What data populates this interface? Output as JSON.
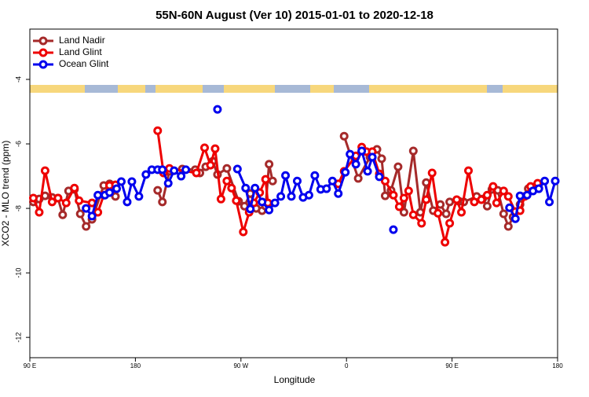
{
  "chart_data": {
    "type": "line",
    "title": "55N-60N August (Ver 10)   2015-01-01 to 2020-12-18",
    "xlabel": "Longitude",
    "ylabel": "XCO2 - MLO trend (ppm)",
    "xlim": [
      90,
      540
    ],
    "ylim": [
      -12.63,
      -2.44
    ],
    "xticks": [
      {
        "value": 90,
        "label": "90 E"
      },
      180,
      {
        "value": 270,
        "label": "90 W"
      },
      {
        "value": 360,
        "label": "0"
      },
      {
        "value": 450,
        "label": "90 E"
      },
      {
        "value": 540,
        "label": "180"
      }
    ],
    "yticks": [
      -4,
      -6,
      -8,
      -10,
      -12
    ],
    "legend": "upper left",
    "series": [
      {
        "name": "Land Nadir",
        "color": "#a52a2a",
        "x": [
          93,
          98,
          103,
          109,
          114,
          118,
          123,
          128,
          133,
          138,
          143,
          153,
          158,
          163,
          null,
          199,
          203,
          209,
          220,
          231,
          235,
          240,
          246,
          250,
          258,
          268,
          273,
          278,
          283,
          288,
          291,
          294,
          297,
          null,
          358,
          370,
          380,
          386,
          390,
          393,
          398,
          404,
          409,
          417,
          423,
          428,
          434,
          440,
          445,
          448,
          456,
          460,
          471,
          476,
          480,
          484,
          489,
          494,
          498,
          502,
          508,
          515,
          524
        ],
        "values": [
          -7.8,
          -7.71,
          -7.61,
          -7.66,
          -7.68,
          -8.2,
          -7.46,
          -7.41,
          -8.17,
          -8.56,
          -8.34,
          -7.29,
          -7.24,
          -7.63,
          null,
          -7.44,
          -7.8,
          -6.85,
          -6.78,
          -6.8,
          -6.9,
          -6.71,
          -6.54,
          -6.95,
          -6.76,
          -7.78,
          -7.93,
          -7.54,
          -8.0,
          -8.07,
          -7.93,
          -6.63,
          -7.15,
          null,
          -5.76,
          -7.07,
          -6.41,
          -6.17,
          -6.46,
          -7.61,
          -7.44,
          -6.71,
          -8.12,
          -6.22,
          -8.12,
          -7.2,
          -8.07,
          -7.88,
          -8.17,
          -7.8,
          -7.78,
          -7.8,
          -7.63,
          -7.71,
          -7.93,
          -7.41,
          -7.44,
          -8.17,
          -8.56,
          -8.27,
          -7.88,
          -7.39,
          -7.37
        ]
      },
      {
        "name": "Land Glint",
        "color": "#ee0000",
        "x": [
          93,
          98,
          103,
          109,
          114,
          121,
          128,
          132,
          143,
          148,
          153,
          158,
          163,
          null,
          199,
          204,
          209,
          232,
          239,
          244,
          248,
          253,
          258,
          262,
          266,
          272,
          277,
          281,
          286,
          291,
          293,
          null,
          353,
          358,
          368,
          373,
          377,
          382,
          388,
          393,
          400,
          405,
          409,
          413,
          417,
          424,
          428,
          433,
          438,
          444,
          448,
          454,
          458,
          464,
          469,
          475,
          480,
          485,
          488,
          494,
          498,
          504,
          508,
          512,
          517,
          523
        ],
        "values": [
          -7.68,
          -8.12,
          -6.83,
          -7.8,
          -7.68,
          -7.83,
          -7.37,
          -7.76,
          -7.83,
          -8.12,
          -7.59,
          -7.29,
          -7.27,
          null,
          -5.59,
          -6.9,
          -6.76,
          -6.9,
          -6.12,
          -6.66,
          -6.15,
          -7.71,
          -7.15,
          -7.37,
          -7.76,
          -8.73,
          -8.12,
          -7.83,
          -7.51,
          -7.1,
          -7.83,
          null,
          -7.24,
          -6.85,
          -6.37,
          -6.1,
          -6.24,
          -6.24,
          -6.93,
          -7.15,
          -7.59,
          -7.95,
          -7.68,
          -7.46,
          -8.2,
          -8.46,
          -7.73,
          -6.9,
          -8.15,
          -9.05,
          -8.46,
          -7.73,
          -8.12,
          -6.83,
          -7.8,
          -7.73,
          -7.59,
          -7.32,
          -7.83,
          -7.46,
          -7.63,
          -8.1,
          -8.07,
          -7.63,
          -7.32,
          -7.22
        ]
      },
      {
        "name": "Ocean Glint",
        "color": "#0000ee",
        "x": [
          138,
          143,
          148,
          154,
          158,
          164,
          168,
          173,
          177,
          183,
          189,
          194,
          199,
          203,
          208,
          213,
          219,
          223,
          null,
          250,
          null,
          267,
          274,
          278,
          282,
          288,
          294,
          299,
          304,
          308,
          313,
          318,
          323,
          328,
          333,
          338,
          343,
          348,
          353,
          359,
          363,
          368,
          373,
          378,
          382,
          388,
          null,
          400,
          null,
          499,
          504,
          508,
          514,
          519,
          524,
          529,
          533,
          538
        ],
        "values": [
          -8.0,
          -8.24,
          -7.59,
          -7.59,
          -7.51,
          -7.39,
          -7.17,
          -7.8,
          -7.17,
          -7.63,
          -6.95,
          -6.8,
          -6.8,
          -6.8,
          -7.22,
          -6.83,
          -7.0,
          -6.8,
          null,
          -4.93,
          null,
          -6.78,
          -7.37,
          -8.02,
          -7.37,
          -7.8,
          -8.05,
          -7.83,
          -7.63,
          -6.98,
          -7.63,
          -7.15,
          -7.66,
          -7.59,
          -6.98,
          -7.41,
          -7.39,
          -7.15,
          -7.54,
          -6.88,
          -6.32,
          -6.63,
          -6.22,
          -6.85,
          -6.41,
          -7.02,
          null,
          -8.66,
          null,
          -7.98,
          -8.32,
          -7.61,
          -7.59,
          -7.46,
          -7.39,
          -7.15,
          -7.8,
          -7.15
        ]
      }
    ]
  }
}
